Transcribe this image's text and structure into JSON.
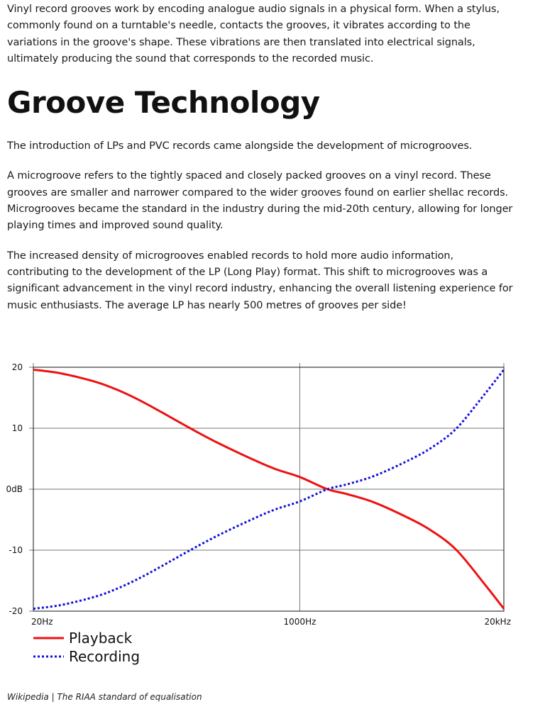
{
  "article": {
    "intro_paragraph": "Vinyl record grooves work by encoding analogue audio signals in a physical form. When a stylus, commonly found on a turntable's needle, contacts the grooves, it vibrates according to the variations in the groove's shape. These vibrations are then translated into electrical signals, ultimately producing the sound that corresponds to the recorded music.",
    "heading": "Groove Technology",
    "paragraphs": [
      "The introduction of LPs and PVC records came alongside the development of microgrooves.",
      "A microgroove refers to the tightly spaced and closely packed grooves on a vinyl record. These grooves are smaller and narrower compared to the wider grooves found on earlier shellac records. Microgrooves became the standard in the industry during the mid-20th century, allowing for longer playing times and improved sound quality.",
      "The increased density of microgrooves enabled records to hold more audio information, contributing to the development of the LP (Long Play) format. This shift to microgrooves was a significant advancement in the vinyl record industry, enhancing the overall listening experience for music enthusiasts. The average LP has nearly 500 metres of grooves per side!"
    ],
    "caption": "Wikipedia | The RIAA standard of equalisation"
  },
  "chart_data": {
    "type": "line",
    "title": "",
    "xlabel": "",
    "ylabel": "",
    "x_scale": "log",
    "xlim": [
      20,
      20000
    ],
    "ylim": [
      -20,
      20
    ],
    "x_ticks": [
      {
        "value": 20,
        "label": "20Hz"
      },
      {
        "value": 1000,
        "label": "1000Hz"
      },
      {
        "value": 20000,
        "label": "20kHz"
      }
    ],
    "y_ticks": [
      {
        "value": 20,
        "label": "20"
      },
      {
        "value": 10,
        "label": "10"
      },
      {
        "value": 0,
        "label": "0dB"
      },
      {
        "value": -10,
        "label": "-10"
      },
      {
        "value": -20,
        "label": "-20"
      }
    ],
    "grid": true,
    "legend_position": "bottom-left",
    "series": [
      {
        "name": "Playback",
        "color": "#ee1111",
        "style": "solid",
        "x": [
          20,
          30,
          50,
          70,
          100,
          150,
          200,
          300,
          500,
          700,
          1000,
          1500,
          2000,
          3000,
          5000,
          7000,
          10000,
          15000,
          20000
        ],
        "y": [
          19.6,
          19.0,
          17.6,
          16.2,
          14.3,
          11.8,
          10.0,
          7.6,
          4.9,
          3.3,
          2.0,
          0.0,
          -0.8,
          -2.2,
          -4.8,
          -6.9,
          -10.0,
          -15.5,
          -19.6
        ]
      },
      {
        "name": "Recording",
        "color": "#1111dd",
        "style": "dotted",
        "x": [
          20,
          30,
          50,
          70,
          100,
          150,
          200,
          300,
          500,
          700,
          1000,
          1500,
          2000,
          3000,
          5000,
          7000,
          10000,
          15000,
          20000
        ],
        "y": [
          -19.6,
          -19.0,
          -17.6,
          -16.2,
          -14.3,
          -11.8,
          -10.0,
          -7.6,
          -4.9,
          -3.3,
          -2.0,
          0.0,
          0.8,
          2.2,
          4.8,
          6.9,
          10.0,
          15.5,
          19.6
        ]
      }
    ]
  }
}
